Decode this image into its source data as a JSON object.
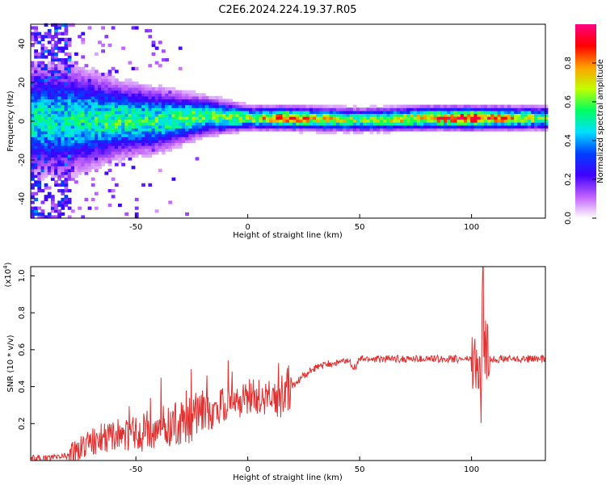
{
  "title": "C2E6.2024.224.19.37.R05",
  "chart_data": [
    {
      "type": "heatmap",
      "xlabel": "Height of straight line (km)",
      "ylabel": "Frequency (Hz)",
      "xlim": [
        -97,
        133
      ],
      "ylim": [
        -50,
        50
      ],
      "xticks": [
        -50,
        0,
        50,
        100
      ],
      "yticks": [
        -40,
        -20,
        0,
        20,
        40
      ],
      "colorbar": {
        "label": "Normalized spectral amplitude",
        "range": [
          0,
          1
        ],
        "ticks": [
          0.0,
          0.2,
          0.4,
          0.6,
          0.8
        ],
        "colors": [
          "#ffffff",
          "#c060ff",
          "#4000ff",
          "#0040ff",
          "#00e0ff",
          "#00ff60",
          "#c0ff00",
          "#ffa000",
          "#ff0000",
          "#ff0080"
        ]
      },
      "ridge": [
        {
          "x": -80,
          "freq": 0,
          "spread": 14,
          "amp": 0.5
        },
        {
          "x": -60,
          "freq": 0,
          "spread": 10,
          "amp": 0.55
        },
        {
          "x": -40,
          "freq": 0,
          "spread": 8,
          "amp": 0.55
        },
        {
          "x": -20,
          "freq": 2,
          "spread": 5,
          "amp": 0.6
        },
        {
          "x": 0,
          "freq": 1,
          "spread": 3,
          "amp": 0.65
        },
        {
          "x": 15,
          "freq": 1,
          "spread": 3,
          "amp": 0.85
        },
        {
          "x": 50,
          "freq": 0,
          "spread": 3,
          "amp": 0.6
        },
        {
          "x": 80,
          "freq": 1,
          "spread": 3,
          "amp": 0.8
        },
        {
          "x": 100,
          "freq": 1,
          "spread": 3,
          "amp": 0.9
        },
        {
          "x": 133,
          "freq": 1,
          "spread": 3,
          "amp": 0.6
        }
      ]
    },
    {
      "type": "line",
      "xlabel": "Height of straight line (km)",
      "ylabel": "SNR (10 * v/v)",
      "yscale_label": "(x10",
      "yscale_exp": "4",
      "yscale_close": ")",
      "xlim": [
        -97,
        133
      ],
      "ylim": [
        0,
        1.05
      ],
      "xticks": [
        -50,
        0,
        50,
        100
      ],
      "yticks": [
        0.2,
        0.4,
        0.6,
        0.8,
        1.0
      ],
      "color": "#e03030",
      "series": [
        {
          "x": [
            -97,
            -90,
            -85,
            -80,
            -75,
            -70,
            -65,
            -60,
            -55,
            -50,
            -45,
            -40,
            -35,
            -30,
            -25,
            -20,
            -15,
            -10,
            -5,
            0,
            5,
            10,
            15,
            20,
            25,
            30,
            35,
            40,
            45,
            48,
            50,
            60,
            70,
            80,
            90,
            95,
            100,
            102,
            104,
            105,
            106,
            108,
            110,
            120,
            133
          ],
          "values": [
            0.01,
            0.01,
            0.02,
            0.03,
            0.07,
            0.1,
            0.12,
            0.14,
            0.15,
            0.14,
            0.16,
            0.18,
            0.18,
            0.2,
            0.23,
            0.25,
            0.27,
            0.3,
            0.33,
            0.34,
            0.35,
            0.34,
            0.33,
            0.4,
            0.46,
            0.5,
            0.52,
            0.53,
            0.54,
            0.5,
            0.55,
            0.55,
            0.55,
            0.55,
            0.55,
            0.55,
            0.55,
            0.52,
            0.4,
            0.3,
            0.6,
            0.55,
            0.55,
            0.55,
            0.55
          ]
        }
      ]
    }
  ]
}
